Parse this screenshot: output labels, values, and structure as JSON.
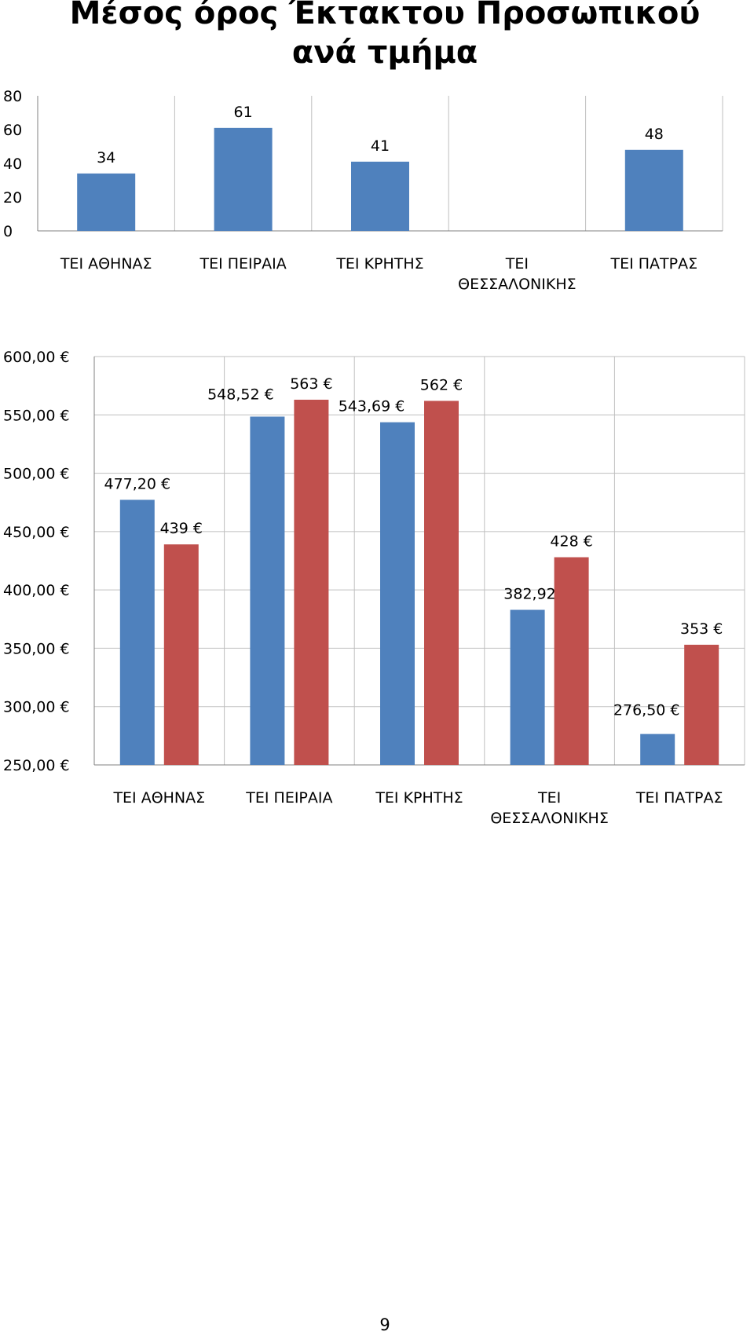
{
  "colors": {
    "series1": "#4f81bd",
    "series2": "#c0504d",
    "grid": "#bfbfbf",
    "axis": "#808080"
  },
  "chart_data": [
    {
      "type": "bar",
      "title": "Μέσος όρος Έκτακτου Προσωπικού ανά τμήμα",
      "categories": [
        "ΤΕΙ ΑΘΗΝΑΣ",
        "ΤΕΙ ΠΕΙΡΑΙΑ",
        "ΤΕΙ ΚΡΗΤΗΣ",
        "ΤΕΙ ΘΕΣΣΑΛΟΝΙΚΗΣ",
        "ΤΕΙ ΠΑΤΡΑΣ"
      ],
      "series": [
        {
          "values": [
            34,
            61,
            41,
            null,
            48
          ],
          "labels": [
            "34",
            "61",
            "41",
            "",
            "48"
          ]
        }
      ],
      "yticks": [
        "0",
        "20",
        "40",
        "60",
        "80"
      ],
      "ylim": [
        0,
        80
      ],
      "grid": "vertical"
    },
    {
      "type": "bar",
      "title": "",
      "categories": [
        "ΤΕΙ ΑΘΗΝΑΣ",
        "ΤΕΙ ΠΕΙΡΑΙΑ",
        "ΤΕΙ ΚΡΗΤΗΣ",
        "ΤΕΙ ΘΕΣΣΑΛΟΝΙΚΗΣ",
        "ΤΕΙ ΠΑΤΡΑΣ"
      ],
      "series": [
        {
          "values": [
            477.2,
            548.52,
            543.69,
            382.92,
            276.5
          ],
          "labels": [
            "477,20 €",
            "548,52 €",
            "543,69 €",
            "382,92 €",
            "276,50 €"
          ]
        },
        {
          "values": [
            439,
            563,
            562,
            428,
            353
          ],
          "labels": [
            "439 €",
            "563 €",
            "562 €",
            "428 €",
            "353 €"
          ]
        }
      ],
      "yticks": [
        "250,00 €",
        "300,00 €",
        "350,00 €",
        "400,00 €",
        "450,00 €",
        "500,00 €",
        "550,00 €",
        "600,00 €"
      ],
      "ylim": [
        250,
        600
      ],
      "grid": "both"
    }
  ],
  "page_number": "9"
}
